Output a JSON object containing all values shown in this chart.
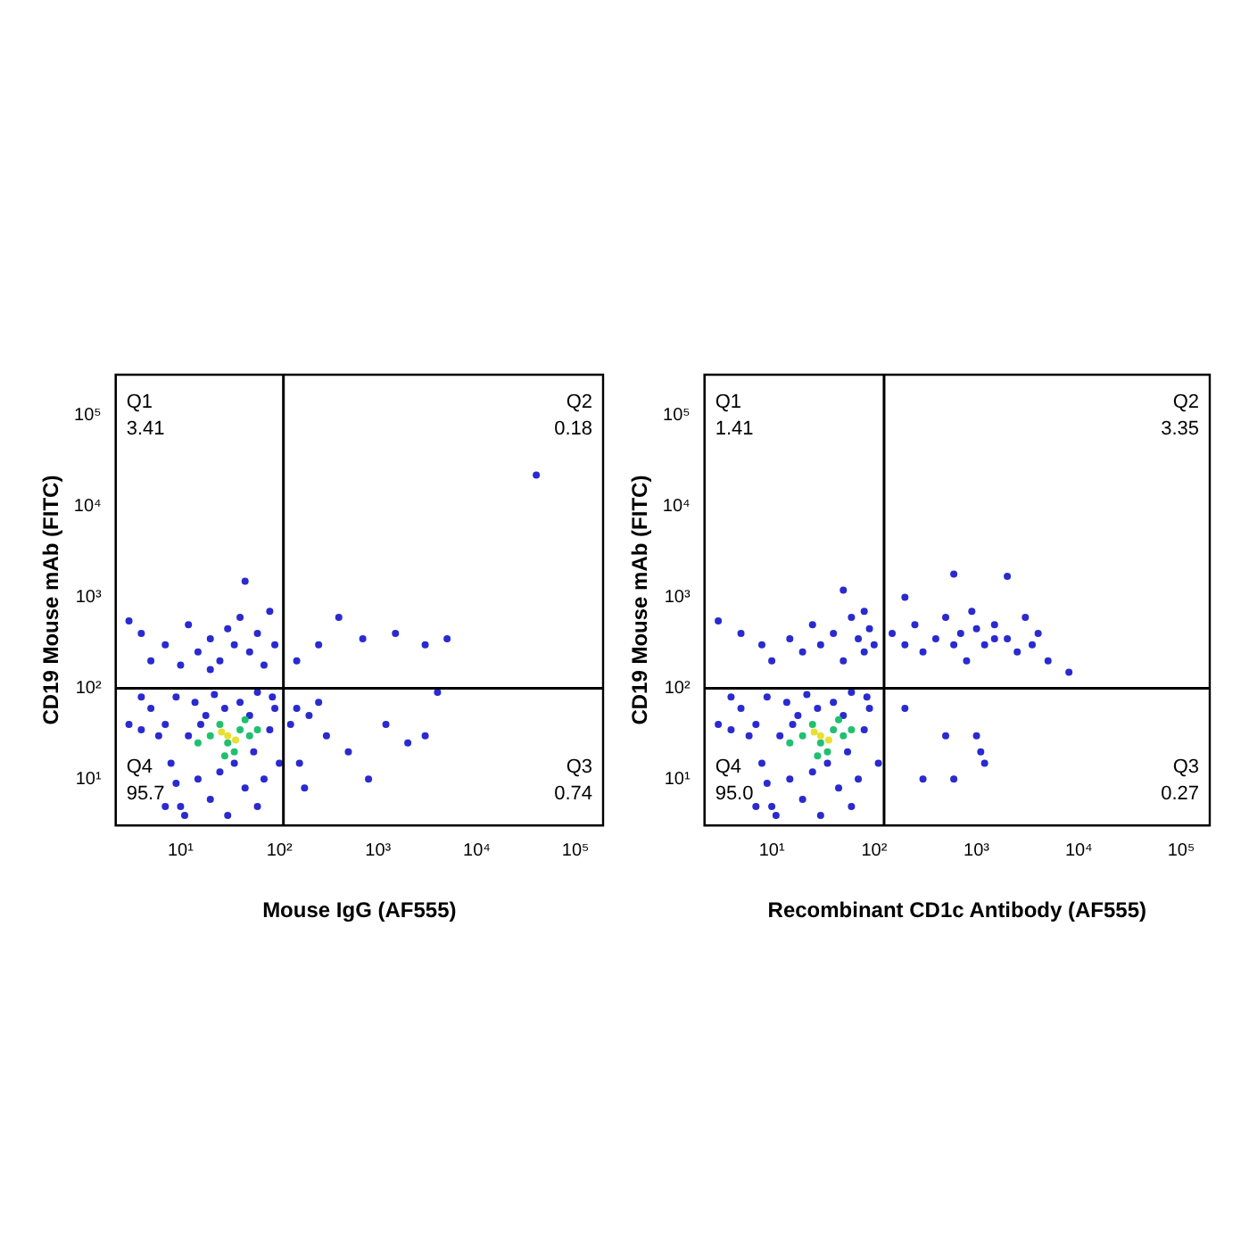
{
  "chart_data": [
    {
      "type": "scatter",
      "xlabel": "Mouse IgG (AF555)",
      "ylabel": "CD19 Mouse mAb (FITC)",
      "log": "xy",
      "marker": "circle",
      "xlim": [
        2.2,
        190000
      ],
      "ylim": [
        3.1,
        280000
      ],
      "xticks": [
        {
          "value": 10,
          "label": "10¹"
        },
        {
          "value": 100,
          "label": "10²"
        },
        {
          "value": 1000,
          "label": "10³"
        },
        {
          "value": 10000,
          "label": "10⁴"
        },
        {
          "value": 100000,
          "label": "10⁵"
        }
      ],
      "yticks": [
        {
          "value": 10,
          "label": "10¹"
        },
        {
          "value": 100,
          "label": "10²"
        },
        {
          "value": 1000,
          "label": "10³"
        },
        {
          "value": 10000,
          "label": "10⁴"
        },
        {
          "value": 100000,
          "label": "10⁵"
        }
      ],
      "ref_lines": [
        {
          "axis": "x",
          "value": 110,
          "color": "#000000"
        },
        {
          "axis": "y",
          "value": 100,
          "color": "#000000"
        }
      ],
      "annotations": [
        "Q1\n3.41",
        "Q2\n0.18",
        "Q3\n0.74",
        "Q4\n95.7"
      ],
      "series": [
        {
          "color": "#2a2ad0",
          "x": [
            7,
            4,
            5,
            9,
            7,
            8,
            9,
            10,
            12,
            14,
            15,
            18,
            20,
            22,
            25,
            28,
            30,
            35,
            40,
            45,
            50,
            55,
            60,
            70,
            80,
            90,
            100,
            3,
            4,
            6,
            11,
            16,
            60,
            85,
            4,
            5,
            7,
            10,
            12,
            15,
            20,
            25,
            30,
            35,
            40,
            50,
            60,
            70,
            80,
            90,
            45,
            20,
            3,
            150,
            250,
            400,
            700,
            1500,
            3000,
            5000,
            40000,
            200,
            300,
            500,
            800,
            1200,
            2000,
            3000,
            4000,
            150,
            130,
            160,
            250,
            180
          ],
          "values": [
            5,
            35,
            60,
            9,
            40,
            15,
            80,
            5,
            30,
            70,
            10,
            50,
            6,
            85,
            12,
            60,
            4,
            15,
            70,
            8,
            50,
            20,
            90,
            10,
            35,
            60,
            15,
            40,
            80,
            30,
            4,
            40,
            5,
            80,
            400,
            200,
            300,
            180,
            500,
            250,
            350,
            200,
            450,
            300,
            600,
            250,
            400,
            180,
            700,
            300,
            1500,
            160,
            550,
            200,
            300,
            600,
            350,
            400,
            300,
            350,
            22000,
            50,
            30,
            20,
            10,
            40,
            25,
            30,
            90,
            60,
            40,
            15,
            70,
            8
          ]
        },
        {
          "color": "#20c070",
          "x": [
            20,
            30,
            40,
            25,
            35,
            50,
            15,
            45,
            60,
            28
          ],
          "values": [
            30,
            25,
            35,
            40,
            20,
            30,
            25,
            45,
            35,
            18
          ]
        },
        {
          "color": "#e8e030",
          "x": [
            30,
            36,
            26
          ],
          "values": [
            30,
            27,
            33
          ]
        }
      ]
    },
    {
      "type": "scatter",
      "xlabel": "Recombinant CD1c Antibody (AF555)",
      "ylabel": "CD19 Mouse mAb (FITC)",
      "log": "xy",
      "marker": "circle",
      "xlim": [
        2.2,
        190000
      ],
      "ylim": [
        3.1,
        280000
      ],
      "xticks": [
        {
          "value": 10,
          "label": "10¹"
        },
        {
          "value": 100,
          "label": "10²"
        },
        {
          "value": 1000,
          "label": "10³"
        },
        {
          "value": 10000,
          "label": "10⁴"
        },
        {
          "value": 100000,
          "label": "10⁵"
        }
      ],
      "yticks": [
        {
          "value": 10,
          "label": "10¹"
        },
        {
          "value": 100,
          "label": "10²"
        },
        {
          "value": 1000,
          "label": "10³"
        },
        {
          "value": 10000,
          "label": "10⁴"
        },
        {
          "value": 100000,
          "label": "10⁵"
        }
      ],
      "ref_lines": [
        {
          "axis": "x",
          "value": 125,
          "color": "#000000"
        },
        {
          "axis": "y",
          "value": 100,
          "color": "#000000"
        }
      ],
      "annotations": [
        "Q1\n1.41",
        "Q2\n3.35",
        "Q3\n0.27",
        "Q4\n95.0"
      ],
      "series": [
        {
          "color": "#2a2ad0",
          "x": [
            7,
            4,
            5,
            9,
            7,
            8,
            9,
            10,
            12,
            14,
            15,
            18,
            20,
            22,
            25,
            28,
            30,
            35,
            40,
            45,
            50,
            55,
            60,
            70,
            80,
            90,
            110,
            3,
            4,
            6,
            11,
            16,
            60,
            85,
            3,
            5,
            8,
            10,
            15,
            20,
            25,
            30,
            40,
            50,
            60,
            70,
            80,
            90,
            100,
            50,
            80,
            150,
            200,
            250,
            300,
            400,
            500,
            600,
            700,
            800,
            1000,
            1200,
            1500,
            2000,
            2500,
            3000,
            3500,
            4000,
            5000,
            8000,
            600,
            2000,
            200,
            1500,
            900,
            200,
            300,
            500,
            600,
            1000,
            1100,
            1200
          ],
          "values": [
            5,
            35,
            60,
            9,
            40,
            15,
            80,
            5,
            30,
            70,
            10,
            50,
            6,
            85,
            12,
            60,
            4,
            15,
            70,
            8,
            50,
            20,
            90,
            10,
            35,
            60,
            15,
            40,
            80,
            30,
            4,
            40,
            5,
            80,
            550,
            400,
            300,
            200,
            350,
            250,
            500,
            300,
            400,
            200,
            600,
            350,
            250,
            450,
            300,
            1200,
            700,
            400,
            300,
            500,
            250,
            350,
            600,
            300,
            400,
            200,
            450,
            300,
            500,
            350,
            250,
            600,
            300,
            400,
            200,
            150,
            1800,
            1700,
            1000,
            350,
            700,
            60,
            10,
            30,
            10,
            30,
            20,
            15
          ]
        },
        {
          "color": "#20c070",
          "x": [
            20,
            30,
            40,
            25,
            35,
            50,
            15,
            45,
            60,
            28
          ],
          "values": [
            30,
            25,
            35,
            40,
            20,
            30,
            25,
            45,
            35,
            18
          ]
        },
        {
          "color": "#e8e030",
          "x": [
            30,
            36,
            26
          ],
          "values": [
            30,
            27,
            33
          ]
        }
      ]
    }
  ]
}
